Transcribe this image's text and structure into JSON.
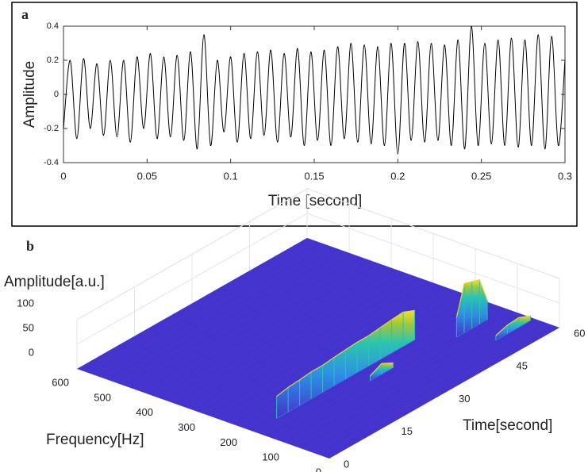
{
  "chart_data": [
    {
      "type": "line",
      "panel": "a",
      "xlabel": "Time [second]",
      "ylabel": "Amplitude",
      "x": [
        0,
        0.004,
        0.008,
        0.012,
        0.016,
        0.02,
        0.024,
        0.028,
        0.032,
        0.036,
        0.04,
        0.044,
        0.048,
        0.052,
        0.056,
        0.06,
        0.064,
        0.068,
        0.072,
        0.076,
        0.08,
        0.084,
        0.088,
        0.092,
        0.096,
        0.1,
        0.104,
        0.108,
        0.112,
        0.116,
        0.12,
        0.124,
        0.128,
        0.132,
        0.136,
        0.14,
        0.144,
        0.148,
        0.152,
        0.156,
        0.16,
        0.164,
        0.168,
        0.172,
        0.176,
        0.18,
        0.184,
        0.188,
        0.192,
        0.196,
        0.2,
        0.204,
        0.208,
        0.212,
        0.216,
        0.22,
        0.224,
        0.228,
        0.232,
        0.236,
        0.24,
        0.244,
        0.248,
        0.252,
        0.256,
        0.26,
        0.264,
        0.268,
        0.272,
        0.276,
        0.28,
        0.284,
        0.288,
        0.292,
        0.296,
        0.3
      ],
      "values": [
        -0.2,
        0.2,
        -0.26,
        0.21,
        -0.2,
        0.18,
        -0.24,
        0.2,
        -0.25,
        0.2,
        -0.28,
        0.22,
        -0.2,
        0.24,
        -0.26,
        0.22,
        -0.25,
        0.23,
        -0.27,
        0.25,
        -0.32,
        0.35,
        -0.3,
        0.2,
        -0.22,
        0.22,
        -0.28,
        0.24,
        -0.26,
        0.25,
        -0.24,
        0.26,
        -0.28,
        0.24,
        -0.25,
        0.27,
        -0.3,
        0.25,
        -0.27,
        0.26,
        -0.3,
        0.28,
        -0.26,
        0.3,
        -0.28,
        0.29,
        -0.29,
        0.28,
        -0.3,
        0.3,
        -0.35,
        0.3,
        -0.27,
        0.31,
        -0.28,
        0.3,
        -0.27,
        0.29,
        -0.3,
        0.32,
        -0.32,
        0.4,
        -0.3,
        0.3,
        -0.29,
        0.32,
        -0.3,
        0.33,
        -0.31,
        0.32,
        -0.3,
        0.35,
        -0.32,
        0.34,
        -0.3,
        0.2
      ],
      "color": "#000000",
      "xlim": [
        0,
        0.3
      ],
      "xticks": [
        0,
        0.05,
        0.1,
        0.15,
        0.2,
        0.25,
        0.3
      ],
      "ylim": [
        -0.4,
        0.4
      ],
      "yticks": [
        -0.4,
        -0.2,
        0,
        0.2,
        0.4
      ]
    },
    {
      "type": "surface",
      "panel": "b",
      "xlabel": "Frequency[Hz]",
      "ylabel": "Time[second]",
      "zlabel": "Amplitude[a.u.]",
      "xlim": [
        0,
        600
      ],
      "xticks": [
        0,
        100,
        200,
        300,
        400,
        500,
        600
      ],
      "ylim": [
        0,
        60
      ],
      "yticks": [
        0,
        15,
        30,
        45,
        60
      ],
      "zlim": [
        0,
        100
      ],
      "zticks": [
        0,
        50,
        100
      ],
      "floor_color": "#4433cc",
      "ridges": [
        {
          "frequency": 180,
          "time": [
            6,
            9,
            12,
            15,
            18,
            21,
            24,
            27,
            30,
            33,
            36,
            39,
            42
          ],
          "amplitude": [
            45,
            50,
            52,
            55,
            55,
            58,
            60,
            62,
            62,
            65,
            68,
            70,
            60
          ]
        },
        {
          "frequency": 126,
          "time": [
            47,
            49,
            51,
            53,
            55
          ],
          "amplitude": [
            40,
            100,
            95,
            90,
            40
          ]
        },
        {
          "frequency": 140,
          "time": [
            26,
            29,
            32
          ],
          "amplitude": [
            10,
            22,
            10
          ]
        },
        {
          "frequency": 60,
          "time": [
            50,
            53,
            56,
            59
          ],
          "amplitude": [
            10,
            18,
            20,
            10
          ]
        }
      ]
    }
  ]
}
